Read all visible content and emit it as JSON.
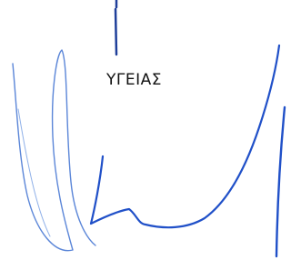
{
  "text": "ΥΓΕΙΑΣ"
}
